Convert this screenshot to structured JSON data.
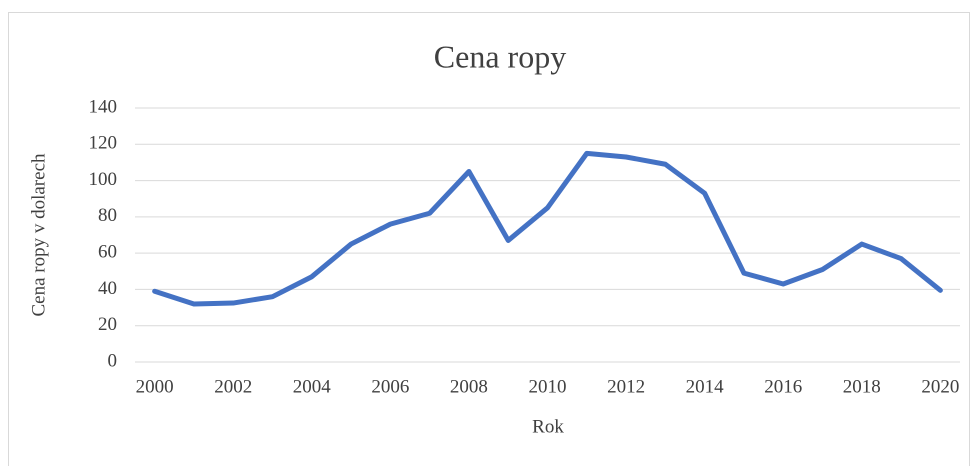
{
  "chart_data": {
    "type": "line",
    "title": "Cena ropy",
    "x_label": "Rok",
    "y_label": "Cena ropy v dolarech",
    "x": [
      2000,
      2001,
      2002,
      2003,
      2004,
      2005,
      2006,
      2007,
      2008,
      2009,
      2010,
      2011,
      2012,
      2013,
      2014,
      2015,
      2016,
      2017,
      2018,
      2019,
      2020
    ],
    "series": [
      {
        "name": "Cena ropy",
        "color": "#4472c4",
        "values": [
          39,
          32,
          32.5,
          36,
          47,
          65,
          76,
          82,
          105,
          67,
          85,
          115,
          113,
          109,
          93,
          49,
          43,
          51,
          65,
          57,
          39.5
        ]
      }
    ],
    "xlim": [
      1999.5,
      2020.5
    ],
    "xticks": [
      2000,
      2002,
      2004,
      2006,
      2008,
      2010,
      2012,
      2014,
      2016,
      2018,
      2020
    ],
    "ylim": [
      0,
      140
    ],
    "yticks": [
      0,
      20,
      40,
      60,
      80,
      100,
      120,
      140
    ],
    "grid": true
  }
}
